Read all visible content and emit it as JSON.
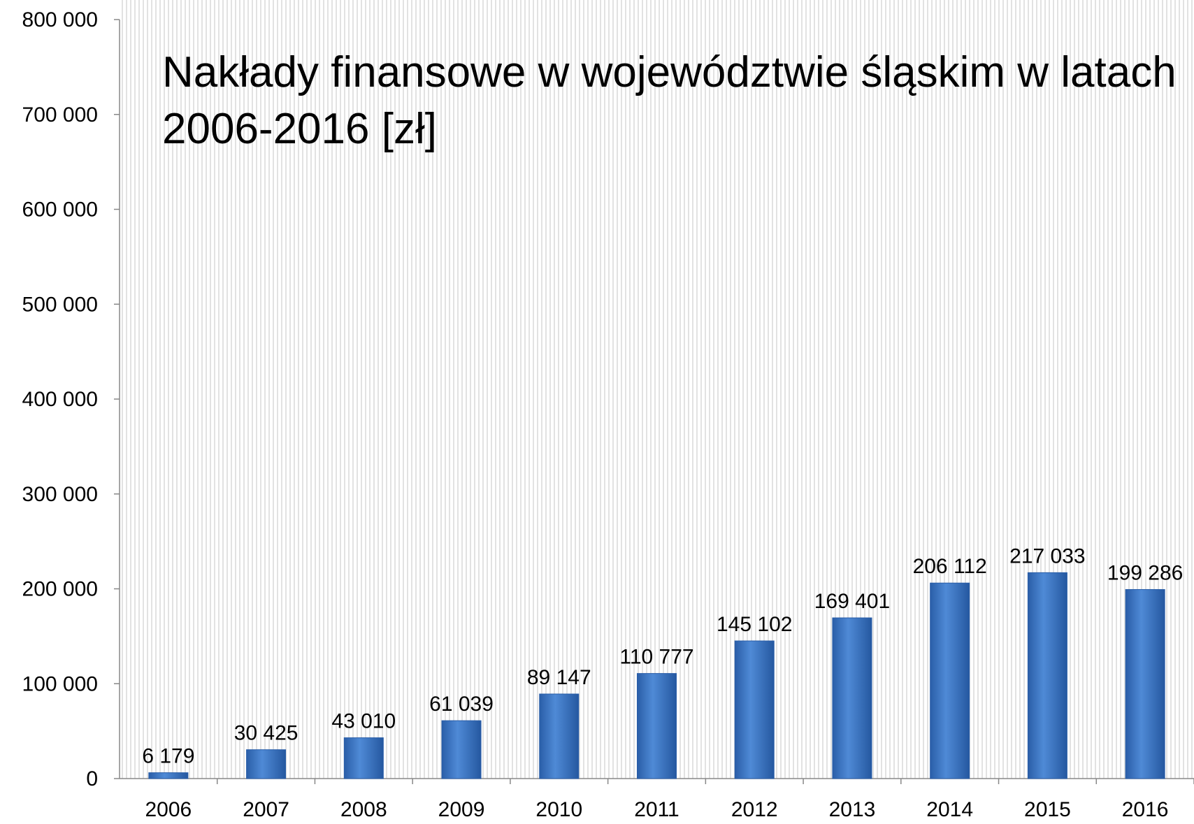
{
  "chart_data": {
    "type": "bar",
    "title": "Nakłady finansowe w województwie śląskim w latach 2006-2016 [zł]",
    "categories": [
      "2006",
      "2007",
      "2008",
      "2009",
      "2010",
      "2011",
      "2012",
      "2013",
      "2014",
      "2015",
      "2016"
    ],
    "values": [
      6179,
      30425,
      43010,
      61039,
      89147,
      110777,
      145102,
      169401,
      206112,
      217033,
      199286
    ],
    "value_labels": [
      "6 179",
      "30 425",
      "43 010",
      "61 039",
      "89 147",
      "110 777",
      "145 102",
      "169 401",
      "206 112",
      "217 033",
      "199 286"
    ],
    "color": "#3a75c4",
    "ylim": [
      0,
      800000
    ],
    "yticks": [
      {
        "value": 0,
        "label": "0"
      },
      {
        "value": 100000,
        "label": "100 000"
      },
      {
        "value": 200000,
        "label": "200 000"
      },
      {
        "value": 300000,
        "label": "300 000"
      },
      {
        "value": 400000,
        "label": "400 000"
      },
      {
        "value": 500000,
        "label": "500 000"
      },
      {
        "value": 600000,
        "label": "600 000"
      },
      {
        "value": 700000,
        "label": "700 000"
      },
      {
        "value": 800000,
        "label": "800 000"
      }
    ]
  }
}
